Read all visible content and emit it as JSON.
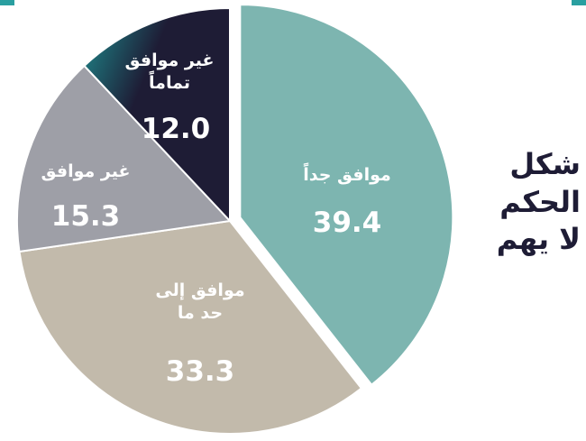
{
  "chart_data": {
    "type": "pie",
    "title": "شكل الحكم لا يهم",
    "categories": [
      "موافق جداً",
      "موافق إلى حد ما",
      "غير موافق",
      "غير موافق تماماً"
    ],
    "values": [
      39.4,
      33.3,
      15.3,
      12.0
    ],
    "value_labels": [
      "39.4",
      "33.3",
      "15.3",
      "12.0"
    ],
    "colors": [
      "#7db5b0",
      "#c2baab",
      "#9e9fa7",
      "#1e1c35"
    ]
  }
}
